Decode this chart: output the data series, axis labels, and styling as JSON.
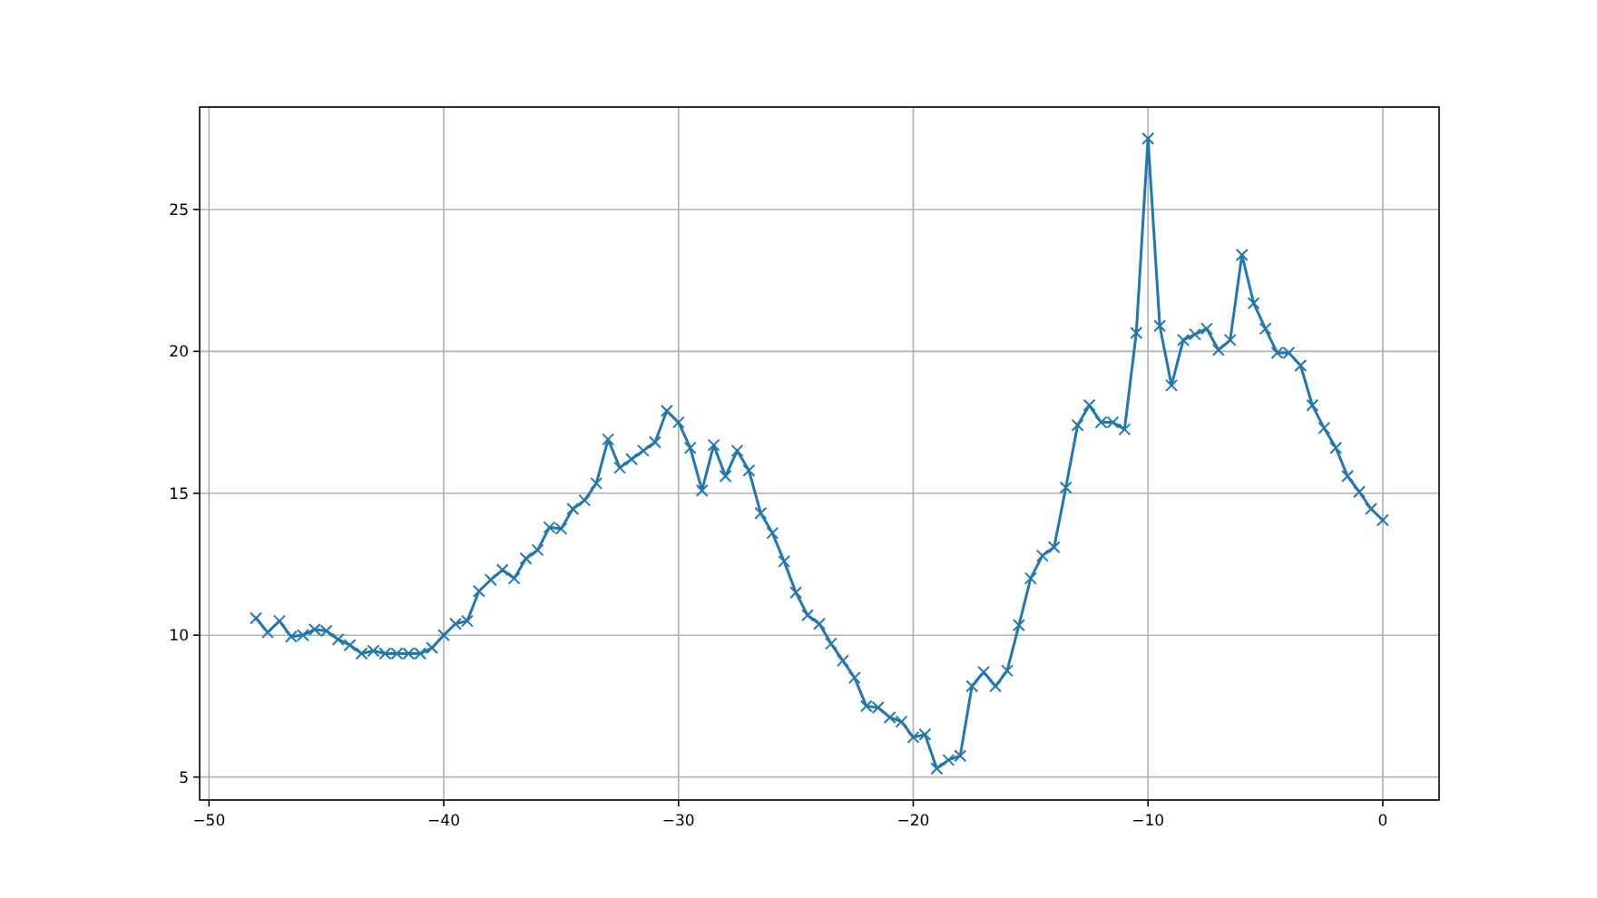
{
  "chart_data": {
    "type": "line",
    "x": [
      -48,
      -47.5,
      -47,
      -46.5,
      -46,
      -45.5,
      -45,
      -44.5,
      -44,
      -43.5,
      -43,
      -42.5,
      -42,
      -41.5,
      -41,
      -40.5,
      -40,
      -39.5,
      -39,
      -38.5,
      -38,
      -37.5,
      -37,
      -36.5,
      -36,
      -35.5,
      -35,
      -34.5,
      -34,
      -33.5,
      -33,
      -32.5,
      -32,
      -31.5,
      -31,
      -30.5,
      -30,
      -29.5,
      -29,
      -28.5,
      -28,
      -27.5,
      -27,
      -26.5,
      -26,
      -25.5,
      -25,
      -24.5,
      -24,
      -23.5,
      -23,
      -22.5,
      -22,
      -21.5,
      -21,
      -20.5,
      -20,
      -19.5,
      -19,
      -18.5,
      -18,
      -17.5,
      -17,
      -16.5,
      -16,
      -15.5,
      -15,
      -14.5,
      -14,
      -13.5,
      -13,
      -12.5,
      -12,
      -11.5,
      -11,
      -10.5,
      -10,
      -9.5,
      -9,
      -8.5,
      -8,
      -7.5,
      -7,
      -6.5,
      -6,
      -5.5,
      -5,
      -4.5,
      -4,
      -3.5,
      -3,
      -2.5,
      -2,
      -1.5,
      -1,
      -0.5,
      0
    ],
    "series": [
      {
        "color": "#1f77b4",
        "values": [
          10.6,
          10.1,
          10.5,
          9.95,
          10.0,
          10.2,
          10.15,
          9.85,
          9.65,
          9.35,
          9.45,
          9.35,
          9.35,
          9.35,
          9.35,
          9.55,
          10.0,
          10.4,
          10.5,
          11.55,
          11.95,
          12.3,
          12.0,
          12.7,
          13.0,
          13.8,
          13.75,
          14.45,
          14.75,
          15.35,
          16.9,
          15.9,
          16.2,
          16.5,
          16.8,
          17.9,
          17.5,
          16.6,
          15.1,
          16.7,
          15.6,
          16.5,
          15.8,
          14.3,
          13.6,
          12.6,
          11.5,
          10.7,
          10.4,
          9.7,
          9.1,
          8.5,
          7.5,
          7.45,
          7.1,
          6.95,
          6.4,
          6.5,
          5.3,
          5.6,
          5.75,
          8.2,
          8.7,
          8.2,
          8.75,
          10.35,
          12.0,
          12.8,
          13.1,
          15.2,
          17.4,
          18.1,
          17.5,
          17.5,
          17.25,
          20.65,
          27.5,
          20.9,
          18.8,
          20.4,
          20.6,
          20.8,
          20.05,
          20.4,
          23.4,
          21.7,
          20.8,
          19.95,
          19.95,
          19.5,
          18.1,
          17.3,
          16.6,
          15.6,
          15.05,
          14.45,
          14.05
        ]
      }
    ],
    "xlim": [
      -50.4,
      2.4
    ],
    "ylim": [
      4.19,
      28.61
    ],
    "xticks": [
      -50,
      -40,
      -30,
      -20,
      -10,
      0
    ],
    "yticks": [
      5,
      10,
      15,
      20,
      25
    ],
    "grid": true,
    "marker": "cross",
    "line_style": "solid"
  }
}
